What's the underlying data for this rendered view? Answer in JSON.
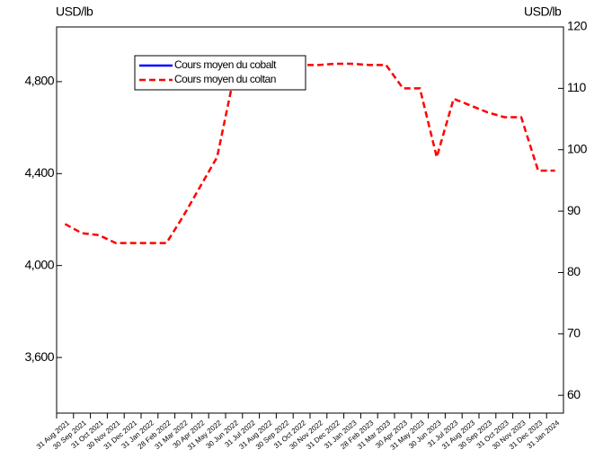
{
  "chart_data": {
    "type": "line",
    "ylabel": "USD/lb",
    "y2label": "USD/lb",
    "categories": [
      "31 Aug 2021",
      "30 Sep 2021",
      "31 Oct 2021",
      "30 Nov 2021",
      "31 Dec 2021",
      "31 Jan 2022",
      "28 Feb 2022",
      "31 Mar 2022",
      "30 Apr 2022",
      "31 May 2022",
      "30 Jun 2022",
      "31 Jul 2022",
      "31 Aug 2022",
      "30 Sep 2022",
      "31 Oct 2022",
      "30 Nov 2022",
      "31 Dec 2022",
      "31 Jan 2023",
      "28 Feb 2023",
      "31 Mar 2023",
      "30 Apr 2023",
      "31 May 2023",
      "30 Jun 2023",
      "31 Jul 2023",
      "31 Aug 2023",
      "30 Sep 2023",
      "31 Oct 2023",
      "30 Nov 2023",
      "31 Dec 2023",
      "31 Jan 2024"
    ],
    "series": [
      {
        "name": "Cours moyen du cobalt",
        "color": "#0000ff",
        "dashed": false,
        "values": [
          null,
          null,
          null,
          null,
          null,
          null,
          null,
          null,
          null,
          null,
          null,
          null,
          null,
          null,
          null,
          null,
          null,
          null,
          null,
          null,
          null,
          null,
          null,
          null,
          null,
          null,
          null,
          null,
          null,
          null
        ]
      },
      {
        "name": "Cours moyen du coltan",
        "color": "#ff0000",
        "dashed": true,
        "axis": "y2",
        "values": [
          87.9,
          86.4,
          86.1,
          84.8,
          84.8,
          84.8,
          84.8,
          89.2,
          94,
          98.8,
          112,
          114,
          114,
          113.8,
          113.8,
          113.8,
          114,
          114,
          113.8,
          113.8,
          110,
          110,
          98.8,
          108.3,
          107.2,
          106.1,
          105.3,
          105.3,
          96.6,
          96.6
        ]
      }
    ],
    "ylim": [
      3358,
      5038
    ],
    "yticks": [
      {
        "value": 3600,
        "label": "3,600"
      },
      {
        "value": 4000,
        "label": "4,000"
      },
      {
        "value": 4400,
        "label": "4,400"
      },
      {
        "value": 4800,
        "label": "4,800"
      }
    ],
    "y2lim": [
      57.1,
      120
    ],
    "y2ticks": [
      60,
      70,
      80,
      90,
      100,
      110,
      120
    ]
  }
}
